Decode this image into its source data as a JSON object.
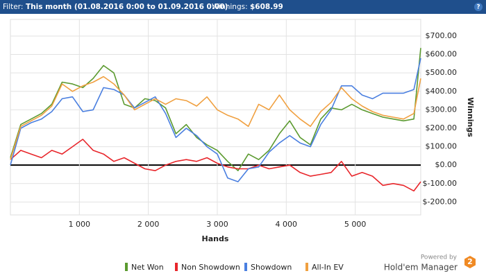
{
  "header": {
    "filter_label": "Filter:",
    "filter_value": "This month (01.08.2016 0:00 to 01.09.2016 0:00)",
    "winnings_label": "Winnings:",
    "winnings_value": "$608.99",
    "help": "?"
  },
  "footer": {
    "powered_by": "Powered by",
    "brand": "Hold'em Manager",
    "logo": "2"
  },
  "chart_data": {
    "type": "line",
    "x_label": "Hands",
    "y_label": "Winnings",
    "x": [
      0,
      150,
      300,
      450,
      600,
      750,
      900,
      1050,
      1200,
      1350,
      1500,
      1650,
      1800,
      1950,
      2100,
      2250,
      2400,
      2550,
      2700,
      2850,
      3000,
      3150,
      3300,
      3450,
      3600,
      3750,
      3900,
      4050,
      4200,
      4350,
      4500,
      4650,
      4800,
      4950,
      5100,
      5250,
      5400,
      5550,
      5700,
      5850,
      5950
    ],
    "xlim": [
      0,
      5950
    ],
    "xticks": [
      {
        "value": 1000,
        "label": "1 000"
      },
      {
        "value": 2000,
        "label": "2 000"
      },
      {
        "value": 3000,
        "label": "3 000"
      },
      {
        "value": 4000,
        "label": "4 000"
      },
      {
        "value": 5000,
        "label": "5 000"
      }
    ],
    "ylim": [
      -270,
      790
    ],
    "yticks": [
      {
        "value": -200,
        "label": "$-200.00"
      },
      {
        "value": -100,
        "label": "$-100.00"
      },
      {
        "value": 0,
        "label": "$0.00"
      },
      {
        "value": 100,
        "label": "$100.00"
      },
      {
        "value": 200,
        "label": "$200.00"
      },
      {
        "value": 300,
        "label": "$300.00"
      },
      {
        "value": 400,
        "label": "$400.00"
      },
      {
        "value": 500,
        "label": "$500.00"
      },
      {
        "value": 600,
        "label": "$600.00"
      },
      {
        "value": 700,
        "label": "$700.00"
      }
    ],
    "grid": true,
    "legend": "bottom",
    "series": [
      {
        "name": "Net Won",
        "color": "#5b9a2f",
        "values": [
          40,
          220,
          250,
          280,
          330,
          450,
          440,
          420,
          470,
          540,
          500,
          330,
          310,
          360,
          350,
          310,
          170,
          220,
          150,
          110,
          80,
          20,
          -30,
          60,
          30,
          80,
          170,
          240,
          150,
          110,
          250,
          310,
          300,
          330,
          300,
          280,
          260,
          250,
          240,
          250,
          635
        ]
      },
      {
        "name": "Non Showdown",
        "color": "#e8262b",
        "values": [
          30,
          80,
          60,
          40,
          80,
          60,
          100,
          140,
          80,
          60,
          20,
          40,
          10,
          -20,
          -30,
          0,
          20,
          30,
          20,
          40,
          10,
          -10,
          -20,
          -20,
          0,
          -20,
          -10,
          0,
          -40,
          -60,
          -50,
          -40,
          20,
          -60,
          -40,
          -60,
          -110,
          -100,
          -110,
          -140,
          -90
        ]
      },
      {
        "name": "Showdown",
        "color": "#4a7fe0",
        "values": [
          0,
          200,
          230,
          250,
          290,
          360,
          370,
          290,
          300,
          420,
          410,
          380,
          310,
          340,
          370,
          280,
          150,
          200,
          160,
          100,
          60,
          -70,
          -90,
          -20,
          -10,
          70,
          120,
          160,
          120,
          100,
          220,
          300,
          430,
          430,
          380,
          360,
          390,
          390,
          390,
          410,
          580
        ]
      },
      {
        "name": "All-In EV",
        "color": "#f0a040",
        "values": [
          30,
          210,
          240,
          270,
          320,
          440,
          400,
          430,
          450,
          480,
          440,
          380,
          300,
          330,
          360,
          330,
          360,
          350,
          320,
          370,
          300,
          270,
          250,
          210,
          330,
          300,
          380,
          300,
          250,
          210,
          290,
          340,
          420,
          360,
          320,
          290,
          270,
          260,
          250,
          280,
          470
        ]
      }
    ]
  }
}
